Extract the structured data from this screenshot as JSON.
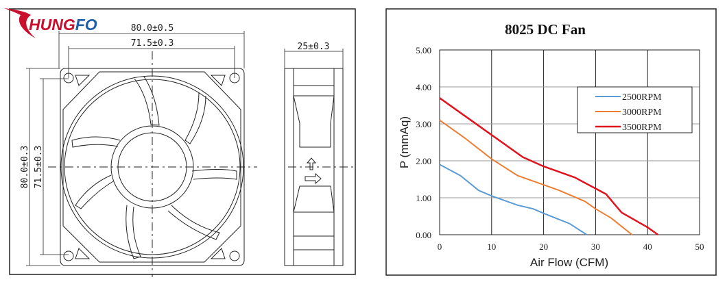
{
  "logo": {
    "text_red": "HUNG",
    "text_blue": "FO",
    "colors": {
      "red": "#c8102e",
      "blue": "#1f5fa8"
    }
  },
  "drawing": {
    "dim_width_outer": "80.0±0.5",
    "dim_width_holes": "71.5±0.3",
    "dim_height_outer": "80.0±0.3",
    "dim_height_holes": "71.5±0.3",
    "dim_depth": "25±0.3"
  },
  "chart_data": {
    "type": "line",
    "title": "8025 DC Fan",
    "xlabel": "Air Flow (CFM)",
    "ylabel": "P (mmAq)",
    "xlim": [
      0,
      50
    ],
    "ylim": [
      0,
      5
    ],
    "xticks": [
      "0",
      "10",
      "20",
      "30",
      "40",
      "50"
    ],
    "yticks": [
      "0.00",
      "1.00",
      "2.00",
      "3.00",
      "4.00",
      "5.00"
    ],
    "grid": true,
    "legend_position": "top-right",
    "series": [
      {
        "name": "2500RPM",
        "color": "#5b9bd5",
        "x": [
          0,
          4,
          7.5,
          10,
          15,
          18,
          20,
          25,
          28.3
        ],
        "y": [
          1.9,
          1.6,
          1.2,
          1.05,
          0.8,
          0.7,
          0.58,
          0.3,
          0
        ]
      },
      {
        "name": "3000RPM",
        "color": "#ed7d31",
        "x": [
          0,
          5,
          10,
          15,
          20,
          23,
          28,
          30,
          33,
          37
        ],
        "y": [
          3.1,
          2.6,
          2.05,
          1.6,
          1.35,
          1.2,
          0.9,
          0.7,
          0.45,
          0
        ]
      },
      {
        "name": "3500RPM",
        "color": "#e0141e",
        "x": [
          0,
          5,
          10,
          16,
          20,
          26,
          30,
          32,
          35,
          40,
          42
        ],
        "y": [
          3.7,
          3.2,
          2.7,
          2.1,
          1.85,
          1.55,
          1.25,
          1.1,
          0.6,
          0.2,
          0
        ]
      }
    ]
  }
}
